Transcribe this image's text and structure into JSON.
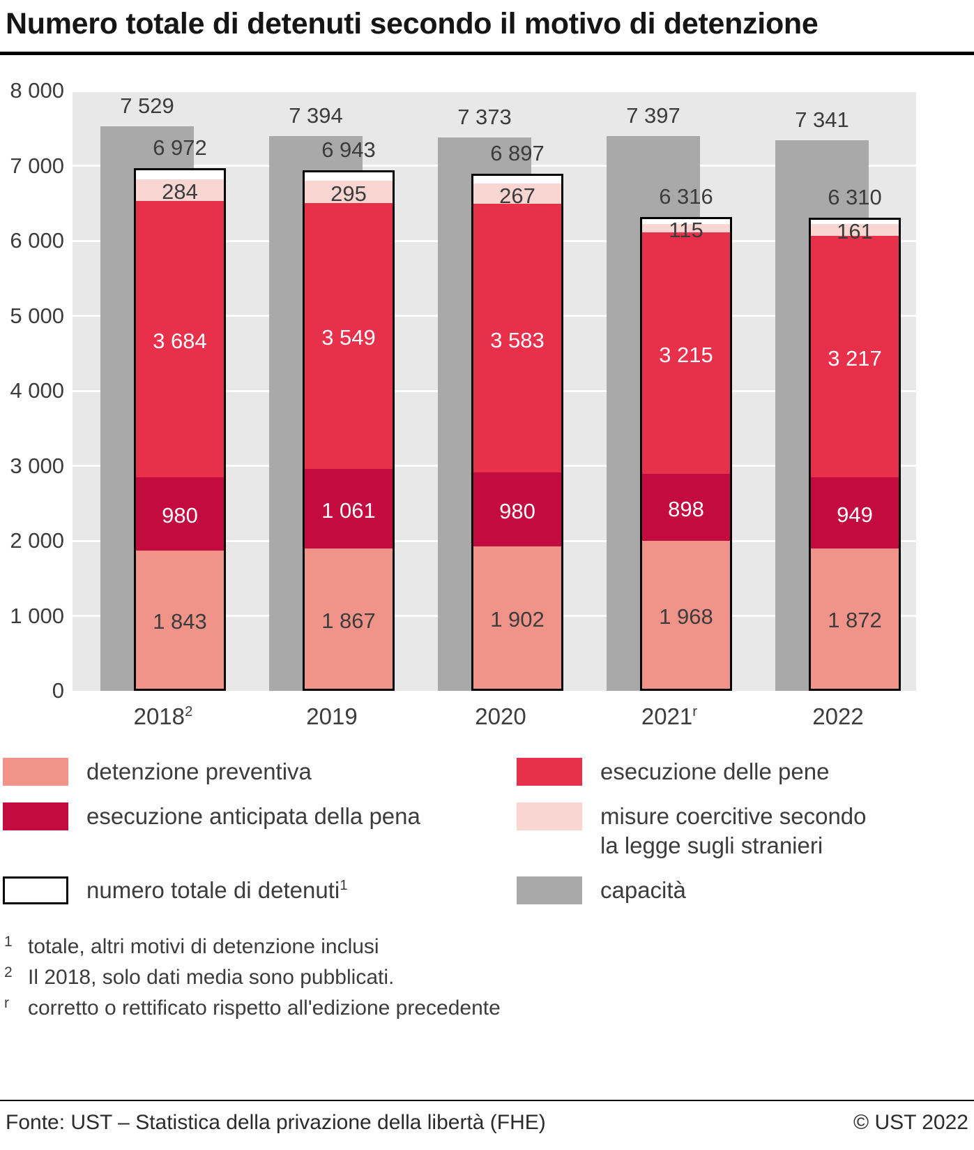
{
  "title": "Numero totale di detenuti secondo il motivo di detenzione",
  "chart_data": {
    "type": "bar",
    "stacked": true,
    "categories": [
      {
        "label": "2018",
        "sup": "2"
      },
      {
        "label": "2019",
        "sup": ""
      },
      {
        "label": "2020",
        "sup": ""
      },
      {
        "label": "2021",
        "sup": "r"
      },
      {
        "label": "2022",
        "sup": ""
      }
    ],
    "series": [
      {
        "name": "detenzione preventiva",
        "color": "#f0948a",
        "label_color": "#3c3c3c",
        "values": [
          1843,
          1867,
          1902,
          1968,
          1872
        ]
      },
      {
        "name": "esecuzione anticipata della pena",
        "color": "#c30b3f",
        "label_color": "#ffffff",
        "values": [
          980,
          1061,
          980,
          898,
          949
        ]
      },
      {
        "name": "esecuzione delle pene",
        "color": "#e8304b",
        "label_color": "#ffffff",
        "values": [
          3684,
          3549,
          3583,
          3215,
          3217
        ]
      },
      {
        "name": "misure coercitive secondo la legge sugli stranieri",
        "color": "#f9d6d1",
        "label_color": "#3c3c3c",
        "values": [
          284,
          295,
          267,
          115,
          161
        ]
      }
    ],
    "totals": {
      "name": "numero totale di detenuti",
      "sup": "1",
      "values": [
        6972,
        6943,
        6897,
        6316,
        6310
      ]
    },
    "capacity": {
      "name": "capacità",
      "color": "#a9a9a9",
      "values": [
        7529,
        7394,
        7373,
        7397,
        7341
      ]
    },
    "ylim": [
      0,
      8000
    ],
    "ytick_step": 1000,
    "yticks": [
      "8 000",
      "7 000",
      "6 000",
      "5 000",
      "4 000",
      "3 000",
      "2 000",
      "1 000",
      "0"
    ],
    "grid": true,
    "legend_position": "bottom"
  },
  "legend": {
    "columns": [
      [
        {
          "label": "detenzione preventiva",
          "color": "#f0948a"
        },
        {
          "label": "esecuzione anticipata della pena",
          "color": "#c30b3f"
        },
        {
          "label": "numero totale di detenuti",
          "sup": "1",
          "outline": true
        }
      ],
      [
        {
          "label": "esecuzione delle pene",
          "color": "#e8304b"
        },
        {
          "label": "misure coercitive secondo\nla legge sugli stranieri",
          "color": "#f9d6d1"
        },
        {
          "label": "capacità",
          "color": "#a9a9a9"
        }
      ]
    ]
  },
  "footnotes": [
    {
      "marker": "1",
      "text": "totale, altri motivi di detenzione inclusi"
    },
    {
      "marker": "2",
      "text": "Il 2018, solo dati media sono pubblicati."
    },
    {
      "marker": "r",
      "text": "corretto o rettificato rispetto all'edizione precedente"
    }
  ],
  "footer": {
    "source": "Fonte: UST – Statistica della privazione della libertà (FHE)",
    "copyright": "© UST 2022"
  }
}
